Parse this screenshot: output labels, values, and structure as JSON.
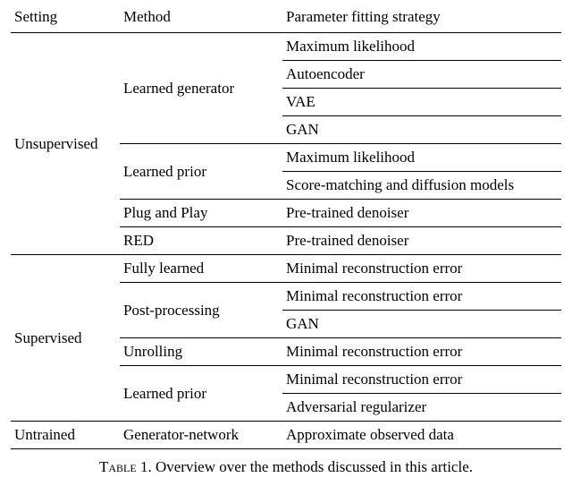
{
  "headers": {
    "c0": "Setting",
    "c1": "Method",
    "c2": "Parameter fitting strategy"
  },
  "caption": {
    "label": "Table 1.",
    "text": "Overview over the methods discussed in this article."
  },
  "groups": {
    "unsup": {
      "label": "Unsupervised",
      "lg": {
        "label": "Learned generator",
        "s0": "Maximum likelihood",
        "s1": "Autoencoder",
        "s2": "VAE",
        "s3": "GAN"
      },
      "lp": {
        "label": "Learned prior",
        "s0": "Maximum likelihood",
        "s1": "Score-matching and diffusion models"
      },
      "pp": {
        "label": "Plug and Play",
        "s0": "Pre-trained denoiser"
      },
      "red": {
        "label": "RED",
        "s0": "Pre-trained denoiser"
      }
    },
    "sup": {
      "label": "Supervised",
      "fl": {
        "label": "Fully learned",
        "s0": "Minimal reconstruction error"
      },
      "pp": {
        "label": "Post-processing",
        "s0": "Minimal reconstruction error",
        "s1": "GAN"
      },
      "un": {
        "label": "Unrolling",
        "s0": "Minimal reconstruction error"
      },
      "lp": {
        "label": "Learned prior",
        "s0": "Minimal reconstruction error",
        "s1": "Adversarial regularizer"
      }
    },
    "untr": {
      "label": "Untrained",
      "gn": {
        "label": "Generator-network",
        "s0": "Approximate observed data"
      }
    }
  }
}
